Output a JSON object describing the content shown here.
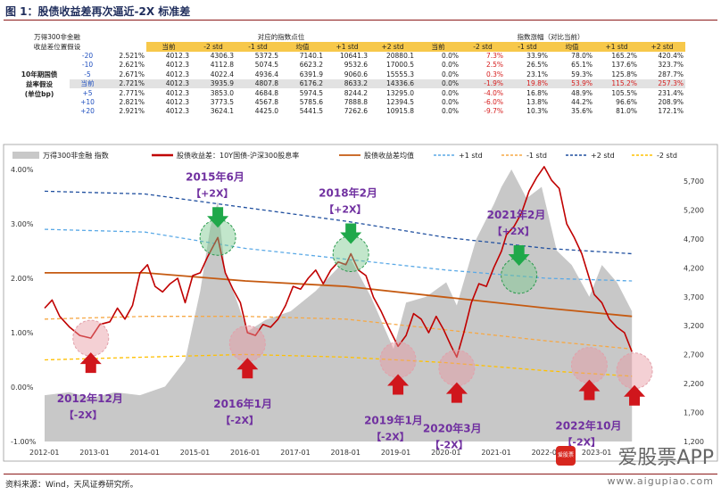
{
  "figure": {
    "label": "图 1：",
    "title": "股债收益差再次逼近-2X 标准差",
    "source": "资料来源：Wind，天风证券研究所。"
  },
  "table": {
    "corner_header_1": "万得300非金融",
    "corner_header_2": "收益差位置假设",
    "group_header_index": "对应的指数点位",
    "group_header_change": "指数涨幅（对比当前）",
    "col_labels": [
      "当前",
      "-2 std",
      "-1 std",
      "均值",
      "+1 std",
      "+2 std"
    ],
    "row_side_label": "10年期国债\n益率假设\n(单位bp)",
    "rows": [
      {
        "shift": "-20",
        "yield": "2.521%",
        "idx": [
          "4012.3",
          "4306.3",
          "5372.5",
          "7140.1",
          "10641.3",
          "20880.1"
        ],
        "chg": [
          "0.0%",
          "7.3%",
          "33.9%",
          "78.0%",
          "165.2%",
          "420.4%"
        ],
        "chg_red": [
          false,
          true,
          false,
          false,
          false,
          false
        ]
      },
      {
        "shift": "-10",
        "yield": "2.621%",
        "idx": [
          "4012.3",
          "4112.8",
          "5074.5",
          "6623.2",
          "9532.6",
          "17000.5"
        ],
        "chg": [
          "0.0%",
          "2.5%",
          "26.5%",
          "65.1%",
          "137.6%",
          "323.7%"
        ],
        "chg_red": [
          false,
          true,
          false,
          false,
          false,
          false
        ]
      },
      {
        "shift": "-5",
        "yield": "2.671%",
        "idx": [
          "4012.3",
          "4022.4",
          "4936.4",
          "6391.9",
          "9060.6",
          "15555.3"
        ],
        "chg": [
          "0.0%",
          "0.3%",
          "23.1%",
          "59.3%",
          "125.8%",
          "287.7%"
        ],
        "chg_red": [
          false,
          true,
          false,
          false,
          false,
          false
        ]
      },
      {
        "shift": "当前",
        "yield": "2.721%",
        "idx": [
          "4012.3",
          "3935.9",
          "4807.8",
          "6176.2",
          "8633.2",
          "14336.6"
        ],
        "chg": [
          "0.0%",
          "-1.9%",
          "19.8%",
          "53.9%",
          "115.2%",
          "257.3%"
        ],
        "chg_red": [
          false,
          true,
          true,
          true,
          true,
          true
        ],
        "current": true
      },
      {
        "shift": "+5",
        "yield": "2.771%",
        "idx": [
          "4012.3",
          "3853.0",
          "4684.8",
          "5974.5",
          "8244.2",
          "13295.0"
        ],
        "chg": [
          "0.0%",
          "-4.0%",
          "16.8%",
          "48.9%",
          "105.5%",
          "231.4%"
        ],
        "chg_red": [
          false,
          true,
          false,
          false,
          false,
          false
        ]
      },
      {
        "shift": "+10",
        "yield": "2.821%",
        "idx": [
          "4012.3",
          "3773.5",
          "4567.8",
          "5785.6",
          "7888.8",
          "12394.5"
        ],
        "chg": [
          "0.0%",
          "-6.0%",
          "13.8%",
          "44.2%",
          "96.6%",
          "208.9%"
        ],
        "chg_red": [
          false,
          true,
          false,
          false,
          false,
          false
        ]
      },
      {
        "shift": "+20",
        "yield": "2.921%",
        "idx": [
          "4012.3",
          "3624.1",
          "4425.0",
          "5441.5",
          "7262.6",
          "10915.8"
        ],
        "chg": [
          "0.0%",
          "-9.7%",
          "10.3%",
          "35.6%",
          "81.0%",
          "172.1%"
        ],
        "chg_red": [
          false,
          true,
          false,
          false,
          false,
          false
        ]
      }
    ]
  },
  "chart_data": {
    "type": "line",
    "legend": [
      "万得300非金融 指数",
      "股债收益差：10Y国债-沪深300股息率",
      "股债收益差均值",
      "+1 std",
      "-1 std",
      "+2 std",
      "-2 std"
    ],
    "x_ticks": [
      "2012-01",
      "2013-01",
      "2014-01",
      "2015-01",
      "2016-01",
      "2017-01",
      "2018-01",
      "2019-01",
      "2020-01",
      "2021-01",
      "2022-01",
      "2023-01"
    ],
    "y_left_ticks": [
      "4.00%",
      "3.00%",
      "2.00%",
      "1.00%",
      "0.00%",
      "-1.00%"
    ],
    "y_left_range": [
      -1.0,
      4.0
    ],
    "y_right_ticks": [
      "5,700",
      "5,200",
      "4,700",
      "4,200",
      "3,700",
      "3,200",
      "2,700",
      "2,200",
      "1,700",
      "1,200"
    ],
    "y_right_range": [
      1200,
      5900
    ],
    "x_range": [
      2012.0,
      2024.3
    ],
    "spread": {
      "x": [
        2012.0,
        2012.15,
        2012.3,
        2012.5,
        2012.7,
        2012.92,
        2013.1,
        2013.3,
        2013.45,
        2013.6,
        2013.75,
        2013.9,
        2014.05,
        2014.2,
        2014.35,
        2014.5,
        2014.65,
        2014.8,
        2014.95,
        2015.1,
        2015.25,
        2015.45,
        2015.6,
        2015.75,
        2015.9,
        2016.04,
        2016.2,
        2016.35,
        2016.5,
        2016.65,
        2016.8,
        2016.95,
        2017.1,
        2017.25,
        2017.4,
        2017.55,
        2017.7,
        2017.85,
        2018.0,
        2018.1,
        2018.25,
        2018.4,
        2018.55,
        2018.7,
        2018.85,
        2019.04,
        2019.2,
        2019.35,
        2019.5,
        2019.65,
        2019.8,
        2019.95,
        2020.1,
        2020.21,
        2020.35,
        2020.5,
        2020.65,
        2020.8,
        2020.95,
        2021.1,
        2021.2,
        2021.35,
        2021.5,
        2021.65,
        2021.8,
        2021.95,
        2022.1,
        2022.25,
        2022.4,
        2022.55,
        2022.7,
        2022.85,
        2022.95,
        2023.1,
        2023.25,
        2023.4,
        2023.55,
        2023.7
      ],
      "y": [
        1.45,
        1.6,
        1.3,
        1.1,
        0.95,
        0.9,
        1.15,
        1.2,
        1.45,
        1.25,
        1.5,
        2.1,
        2.25,
        1.85,
        1.75,
        1.9,
        2.0,
        1.55,
        2.05,
        2.1,
        2.4,
        2.75,
        2.1,
        1.8,
        1.55,
        1.0,
        0.95,
        1.15,
        1.1,
        1.25,
        1.5,
        1.85,
        1.8,
        2.0,
        2.15,
        1.9,
        2.15,
        2.3,
        2.25,
        2.45,
        2.15,
        2.05,
        1.65,
        1.4,
        1.1,
        0.75,
        0.95,
        1.35,
        1.25,
        1.0,
        1.3,
        1.05,
        0.75,
        0.55,
        1.0,
        1.55,
        1.9,
        1.85,
        2.2,
        2.5,
        2.8,
        2.95,
        3.2,
        3.6,
        3.85,
        4.05,
        3.8,
        3.65,
        3.0,
        2.75,
        2.45,
        2.0,
        1.7,
        1.55,
        1.25,
        1.1,
        1.0,
        0.65
      ]
    },
    "mean": {
      "x": [
        2012.0,
        2014.0,
        2016.0,
        2018.0,
        2020.0,
        2022.0,
        2023.7
      ],
      "y": [
        2.1,
        2.1,
        1.95,
        1.85,
        1.65,
        1.45,
        1.3
      ]
    },
    "plus1": {
      "x": [
        2012.0,
        2014.0,
        2016.0,
        2018.0,
        2020.0,
        2022.0,
        2023.7
      ],
      "y": [
        2.9,
        2.85,
        2.55,
        2.35,
        2.15,
        2.0,
        1.95
      ]
    },
    "minus1": {
      "x": [
        2012.0,
        2014.0,
        2016.0,
        2018.0,
        2020.0,
        2022.0,
        2023.7
      ],
      "y": [
        1.25,
        1.3,
        1.3,
        1.25,
        1.05,
        0.85,
        0.7
      ]
    },
    "plus2": {
      "x": [
        2012.0,
        2014.0,
        2016.0,
        2018.0,
        2020.0,
        2022.0,
        2023.7
      ],
      "y": [
        3.6,
        3.55,
        3.3,
        3.05,
        2.75,
        2.55,
        2.45
      ]
    },
    "minus2": {
      "x": [
        2012.0,
        2014.0,
        2016.0,
        2018.0,
        2020.0,
        2022.0,
        2023.7
      ],
      "y": [
        0.5,
        0.55,
        0.6,
        0.55,
        0.45,
        0.3,
        0.2
      ]
    },
    "index_area": {
      "x": [
        2012.0,
        2012.5,
        2012.92,
        2013.4,
        2013.9,
        2014.4,
        2014.8,
        2015.1,
        2015.3,
        2015.45,
        2015.6,
        2015.8,
        2016.04,
        2016.4,
        2016.9,
        2017.4,
        2017.9,
        2018.1,
        2018.5,
        2018.95,
        2019.2,
        2019.6,
        2020.0,
        2020.21,
        2020.6,
        2020.95,
        2021.1,
        2021.3,
        2021.6,
        2021.9,
        2022.2,
        2022.5,
        2022.85,
        2023.1,
        2023.4,
        2023.7
      ],
      "y": [
        2000,
        2050,
        1950,
        2050,
        2000,
        2150,
        2600,
        3800,
        4900,
        5350,
        4100,
        3700,
        3100,
        3300,
        3450,
        3800,
        4250,
        4350,
        3700,
        2800,
        3600,
        3700,
        3950,
        3550,
        4700,
        5300,
        5600,
        5900,
        5400,
        5600,
        4500,
        4250,
        3700,
        4250,
        3950,
        3450
      ]
    },
    "annotations": [
      {
        "text": "2015年6月",
        "sub": "【+2X】",
        "x": 2015.45,
        "y": 2.75,
        "dir": "down"
      },
      {
        "text": "2018年2月",
        "sub": "【+2X】",
        "x": 2018.1,
        "y": 2.45,
        "dir": "down"
      },
      {
        "text": "2021年2月",
        "sub": "【+2X】",
        "x": 2021.45,
        "y": 2.05,
        "dir": "down"
      },
      {
        "text": "2012年12月",
        "sub": "【-2X】",
        "x": 2012.92,
        "y": 0.9,
        "dir": "up"
      },
      {
        "text": "2016年1月",
        "sub": "【-2X】",
        "x": 2016.04,
        "y": 0.8,
        "dir": "up"
      },
      {
        "text": "2019年1月",
        "sub": "【-2X】",
        "x": 2019.04,
        "y": 0.5,
        "dir": "up"
      },
      {
        "text": "2020年3月",
        "sub": "【-2X】",
        "x": 2020.21,
        "y": 0.35,
        "dir": "up"
      },
      {
        "text": "2022年10月",
        "sub": "【-2X】",
        "x": 2022.85,
        "y": 0.4,
        "dir": "up"
      },
      {
        "text": "",
        "sub": "",
        "x": 2023.75,
        "y": 0.3,
        "dir": "up"
      }
    ]
  },
  "watermark": {
    "brand": "爱股票APP",
    "url": "www.aigupiao.com",
    "badge": "爱股票"
  },
  "colors": {
    "title": "#1f2d5c",
    "spread": "#c00000",
    "mean": "#c55a11",
    "plus1": "#5aa9e6",
    "minus1": "#f6a845",
    "plus2": "#1f4f9f",
    "minus2": "#ffc000",
    "area": "#c8c8c8",
    "up_arrow": "#d0161c",
    "down_arrow": "#1fa84a",
    "annot": "#7030a0"
  }
}
